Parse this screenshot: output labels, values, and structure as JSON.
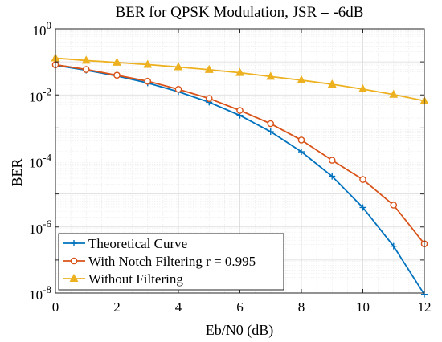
{
  "chart_data": {
    "type": "line",
    "title": "BER for QPSK Modulation, JSR = -6dB",
    "xlabel": "Eb/N0 (dB)",
    "ylabel": "BER",
    "xlim": [
      0,
      12
    ],
    "ylim": [
      1e-08,
      1
    ],
    "yscale": "log",
    "grid": true,
    "minor_grid": true,
    "legend_position": "bottom-left",
    "x_ticks": [
      0,
      2,
      4,
      6,
      8,
      10,
      12
    ],
    "x_tick_labels": [
      "0",
      "2",
      "4",
      "6",
      "8",
      "10",
      "12"
    ],
    "y_ticks": [
      {
        "value": 1,
        "base": "10",
        "exp": "0"
      },
      {
        "value": 0.01,
        "base": "10",
        "exp": "-2"
      },
      {
        "value": 0.0001,
        "base": "10",
        "exp": "-4"
      },
      {
        "value": 1e-06,
        "base": "10",
        "exp": "-6"
      },
      {
        "value": 1e-08,
        "base": "10",
        "exp": "-8"
      }
    ],
    "x": [
      0,
      1,
      2,
      3,
      4,
      5,
      6,
      7,
      8,
      9,
      10,
      11,
      12
    ],
    "series": [
      {
        "name": "Theoretical Curve",
        "color": "#0072BD",
        "marker": "plus",
        "values": [
          0.079,
          0.056,
          0.0375,
          0.023,
          0.0125,
          0.006,
          0.0024,
          0.00077,
          0.00019,
          3.43e-05,
          3.9e-06,
          2.62e-07,
          9.1e-09
        ]
      },
      {
        "name": "With Notch Filtering r = 0.995",
        "color": "#D95319",
        "marker": "circle",
        "values": [
          0.082,
          0.059,
          0.0395,
          0.026,
          0.0148,
          0.0078,
          0.0034,
          0.00135,
          0.00043,
          0.000105,
          2.75e-05,
          4.6e-06,
          3.1e-07
        ]
      },
      {
        "name": "Without Filtering",
        "color": "#EDB120",
        "marker": "triangle",
        "values": [
          0.13,
          0.11,
          0.096,
          0.083,
          0.07,
          0.058,
          0.047,
          0.036,
          0.028,
          0.021,
          0.015,
          0.0103,
          0.0066
        ]
      }
    ]
  }
}
